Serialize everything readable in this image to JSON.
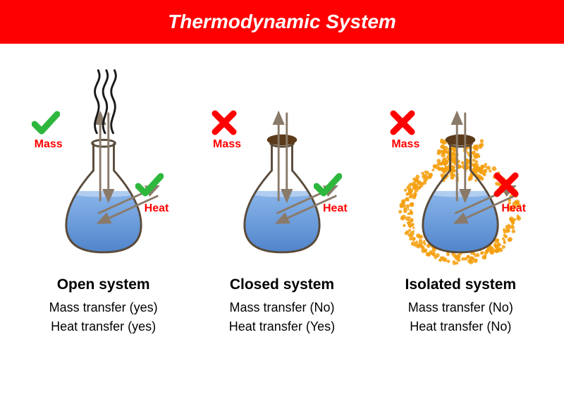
{
  "title": "Thermodynamic System",
  "title_bar": {
    "background": "#ff0000",
    "color": "#ffffff",
    "fontsize": 28,
    "height": 62
  },
  "label_color": "#ff0000",
  "label_fontsize": 16,
  "badge": {
    "check_color": "#2db83d",
    "cross_color": "#ff0000",
    "stroke_width": 9,
    "size": 40
  },
  "flask": {
    "glass_stroke": "#5a4a3a",
    "glass_stroke_width": 3,
    "liquid_top": "#8ab6ea",
    "liquid_bottom": "#4a7fc8",
    "stopper_color": "#5a3a1a",
    "arrow_color": "#8a7a6a",
    "arrow_stroke_width": 3,
    "steam_color": "#1a1a1a",
    "insulation_color": "#f59e0b"
  },
  "systems": [
    {
      "key": "open",
      "title": "Open system",
      "mass_line": "Mass transfer (yes)",
      "heat_line": "Heat transfer (yes)",
      "title_fontsize": 21,
      "line_fontsize": 18,
      "mass_label": "Mass",
      "heat_label": "Heat",
      "mass_ok": true,
      "heat_ok": true,
      "has_stopper": false,
      "has_steam": true,
      "has_insulation": false
    },
    {
      "key": "closed",
      "title": "Closed system",
      "mass_line": "Mass transfer (No)",
      "heat_line": "Heat transfer (Yes)",
      "title_fontsize": 21,
      "line_fontsize": 18,
      "mass_label": "Mass",
      "heat_label": "Heat",
      "mass_ok": false,
      "heat_ok": true,
      "has_stopper": true,
      "has_steam": false,
      "has_insulation": false
    },
    {
      "key": "isolated",
      "title": "Isolated system",
      "mass_line": "Mass transfer (No)",
      "heat_line": "Heat transfer (No)",
      "title_fontsize": 21,
      "line_fontsize": 18,
      "mass_label": "Mass",
      "heat_label": "Heat",
      "mass_ok": false,
      "heat_ok": false,
      "has_stopper": true,
      "has_steam": false,
      "has_insulation": true
    }
  ]
}
